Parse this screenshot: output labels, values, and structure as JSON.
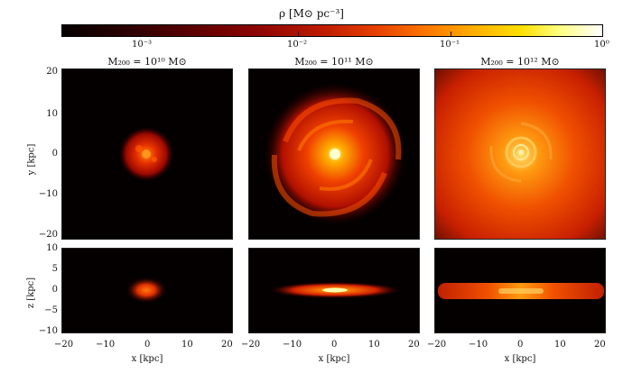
{
  "colorbar": {
    "label": "ρ [M⊙ pc⁻³]",
    "ticks": [
      "10⁻³",
      "10⁻²",
      "10⁻¹",
      "10⁰"
    ]
  },
  "columns": [
    {
      "title": "M₂₀₀ = 10¹⁰ M⊙"
    },
    {
      "title": "M₂₀₀ = 10¹¹ M⊙"
    },
    {
      "title": "M₂₀₀ = 10¹² M⊙"
    }
  ],
  "axes": {
    "ylabel_top": "y [kpc]",
    "ylabel_bottom": "z [kpc]",
    "xlabel": "x [kpc]",
    "y_ticks_top": [
      "20",
      "10",
      "0",
      "−10",
      "−20"
    ],
    "y_ticks_bottom": [
      "10",
      "5",
      "0",
      "−5",
      "−10"
    ],
    "x_ticks": [
      "−20",
      "−10",
      "0",
      "10",
      "20"
    ]
  },
  "colors": {
    "background": "#050000",
    "core": "#ffffa0",
    "mid": "#ff6000",
    "outer": "#8a0a00"
  }
}
